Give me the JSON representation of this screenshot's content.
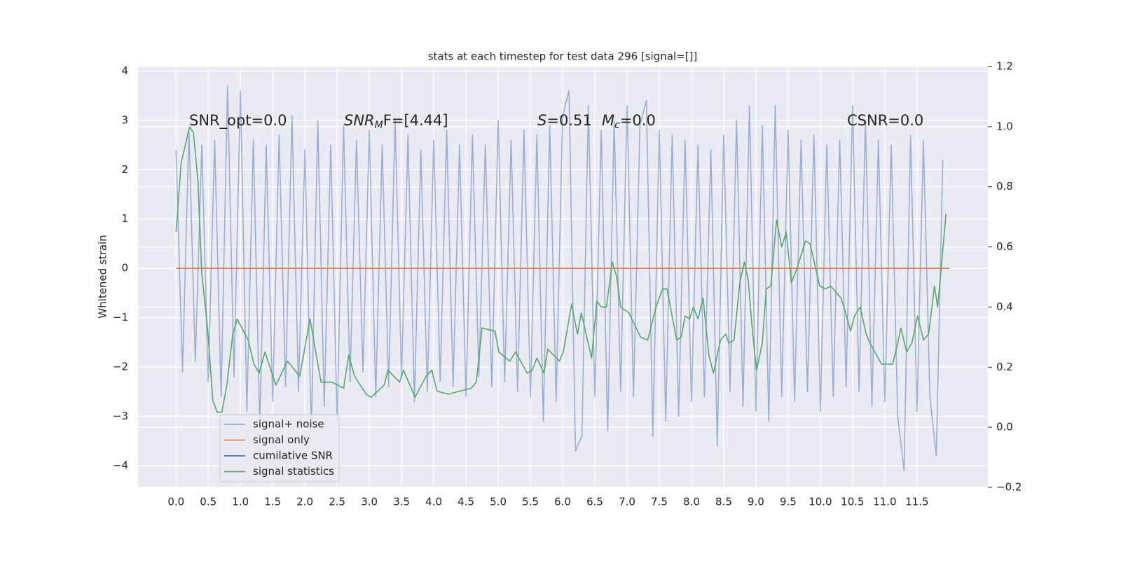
{
  "chart_data": {
    "type": "line",
    "title": "stats at each timestep for test data 296 [signal=[]]",
    "ylabel": "Whitened strain",
    "annotations": [
      {
        "text": "SNR_opt=0.0"
      },
      {
        "base": "SNR",
        "sub": "M",
        "rest": "F=[4.44]"
      },
      {
        "base": "S",
        "rest": "=0.51"
      },
      {
        "base": "M",
        "sub": "c",
        "rest": "=0.0"
      },
      {
        "text": "CSNR=0.0"
      }
    ],
    "xlim": [
      -0.59,
      12.6
    ],
    "ylim": [
      -4.44,
      4.09
    ],
    "y2lim": [
      -0.2,
      1.2
    ],
    "xticks": [
      {
        "value": 0,
        "label": "0.0"
      },
      0.5,
      {
        "value": 1,
        "label": "1.0"
      },
      1.5,
      {
        "value": 2,
        "label": "2.0"
      },
      2.5,
      {
        "value": 3,
        "label": "3.0"
      },
      3.5,
      {
        "value": 4,
        "label": "4.0"
      },
      4.5,
      {
        "value": 5,
        "label": "5.0"
      },
      5.5,
      {
        "value": 6,
        "label": "6.0"
      },
      6.5,
      {
        "value": 7,
        "label": "7.0"
      },
      7.5,
      {
        "value": 8,
        "label": "8.0"
      },
      8.5,
      {
        "value": 9,
        "label": "9.0"
      },
      9.5,
      {
        "value": 10,
        "label": "10.0"
      },
      10.5,
      {
        "value": 11,
        "label": "11.0"
      },
      11.5
    ],
    "yticks": [
      {
        "value": -4,
        "label": "−4"
      },
      {
        "value": -3,
        "label": "−3"
      },
      {
        "value": -2,
        "label": "−2"
      },
      {
        "value": -1,
        "label": "−1"
      },
      0,
      1,
      2,
      3,
      4
    ],
    "y2ticks": [
      {
        "value": -0.2,
        "label": "−0.2"
      },
      {
        "value": 0,
        "label": "0.0"
      },
      0.2,
      0.4,
      0.6,
      0.8,
      {
        "value": 1,
        "label": "1.0"
      },
      1.2
    ],
    "grid": true,
    "legend_loc": "lower left",
    "series": [
      {
        "name": "signal+ noise",
        "color": "#4c72b0",
        "alpha": 0.5,
        "x": [
          0.0,
          0.1,
          0.2,
          0.3,
          0.4,
          0.5,
          0.6,
          0.7,
          0.8,
          0.9,
          1.0,
          1.1,
          1.2,
          1.3,
          1.4,
          1.5,
          1.6,
          1.7,
          1.8,
          1.9,
          2.0,
          2.1,
          2.2,
          2.3,
          2.4,
          2.5,
          2.6,
          2.7,
          2.8,
          2.9,
          3.0,
          3.1,
          3.2,
          3.3,
          3.4,
          3.5,
          3.6,
          3.7,
          3.8,
          3.9,
          4.0,
          4.1,
          4.2,
          4.3,
          4.4,
          4.5,
          4.6,
          4.7,
          4.8,
          4.9,
          5.0,
          5.1,
          5.2,
          5.3,
          5.4,
          5.5,
          5.6,
          5.7,
          5.8,
          5.9,
          6.0,
          6.1,
          6.2,
          6.3,
          6.4,
          6.5,
          6.6,
          6.7,
          6.8,
          6.9,
          7.0,
          7.1,
          7.2,
          7.3,
          7.4,
          7.5,
          7.6,
          7.7,
          7.8,
          7.9,
          8.0,
          8.1,
          8.2,
          8.3,
          8.4,
          8.5,
          8.6,
          8.7,
          8.8,
          8.9,
          9.0,
          9.1,
          9.2,
          9.3,
          9.4,
          9.5,
          9.6,
          9.7,
          9.8,
          9.9,
          10.0,
          10.1,
          10.2,
          10.3,
          10.4,
          10.5,
          10.6,
          10.7,
          10.8,
          10.9,
          11.0,
          11.1,
          11.2,
          11.3,
          11.4,
          11.5,
          11.6,
          11.7,
          11.8,
          11.9
        ],
        "values": [
          2.4,
          -2.1,
          2.8,
          -1.9,
          2.5,
          -2.3,
          2.6,
          -2.6,
          3.7,
          -2.2,
          3.6,
          -2.9,
          2.6,
          -3.2,
          2.5,
          -2.7,
          2.7,
          -2.4,
          3.1,
          -2.5,
          2.4,
          -3.3,
          3.0,
          -2.8,
          2.5,
          -3.1,
          2.9,
          -2.3,
          2.6,
          -2.1,
          2.8,
          -2.6,
          2.5,
          -2.4,
          3.0,
          -2.2,
          2.7,
          -2.7,
          2.4,
          -2.5,
          2.6,
          -2.3,
          2.8,
          -2.4,
          2.5,
          -2.6,
          2.7,
          -2.2,
          2.5,
          -2.4,
          3.0,
          -2.3,
          2.6,
          -2.5,
          2.8,
          -2.6,
          2.7,
          -3.1,
          2.9,
          -2.7,
          3.1,
          3.6,
          -3.7,
          -3.4,
          3.3,
          -2.6,
          2.8,
          -3.3,
          3.0,
          -2.5,
          3.3,
          -2.6,
          2.9,
          3.4,
          -3.4,
          2.8,
          -3.1,
          2.7,
          -3.0,
          2.6,
          -2.7,
          2.5,
          -2.6,
          2.4,
          -3.6,
          2.7,
          -2.5,
          3.0,
          -2.8,
          3.3,
          -2.9,
          2.9,
          -3.1,
          3.3,
          -2.6,
          2.8,
          -2.7,
          2.6,
          -2.5,
          2.7,
          -2.9,
          2.5,
          -2.6,
          2.6,
          -2.4,
          3.3,
          -2.5,
          3.0,
          -2.8,
          2.6,
          -2.7,
          2.5,
          -3.0,
          -4.1,
          2.7,
          -2.9,
          2.6,
          -2.6,
          -3.8,
          2.2
        ]
      },
      {
        "name": "signal only",
        "color": "#dd8452",
        "x": [
          0,
          12
        ],
        "values": [
          0,
          0
        ]
      },
      {
        "name": "cumilative SNR",
        "color": "#4c72b0",
        "x": [],
        "values": []
      },
      {
        "name": "signal statistics",
        "color": "#55a868",
        "axis": "y2",
        "x": [
          0.0,
          0.08,
          0.21,
          0.27,
          0.34,
          0.4,
          0.49,
          0.57,
          0.64,
          0.71,
          0.79,
          0.88,
          0.95,
          1.12,
          1.21,
          1.29,
          1.38,
          1.55,
          1.73,
          1.92,
          2.08,
          2.25,
          2.42,
          2.6,
          2.68,
          2.77,
          2.95,
          3.03,
          3.23,
          3.29,
          3.47,
          3.53,
          3.71,
          3.88,
          3.97,
          4.05,
          4.23,
          4.4,
          4.58,
          4.66,
          4.75,
          4.95,
          5.01,
          5.18,
          5.27,
          5.45,
          5.53,
          5.6,
          5.71,
          5.77,
          5.95,
          6.01,
          6.14,
          6.23,
          6.29,
          6.45,
          6.53,
          6.6,
          6.68,
          6.77,
          6.84,
          6.9,
          7.03,
          7.21,
          7.32,
          7.45,
          7.55,
          7.62,
          7.77,
          7.84,
          7.9,
          7.97,
          8.03,
          8.1,
          8.18,
          8.27,
          8.34,
          8.45,
          8.53,
          8.58,
          8.66,
          8.75,
          8.82,
          8.88,
          8.95,
          9.01,
          9.1,
          9.16,
          9.23,
          9.32,
          9.4,
          9.47,
          9.55,
          9.64,
          9.77,
          9.84,
          9.99,
          10.08,
          10.16,
          10.32,
          10.38,
          10.47,
          10.53,
          10.62,
          10.71,
          10.77,
          10.95,
          11.03,
          11.12,
          11.18,
          11.25,
          11.34,
          11.42,
          11.51,
          11.6,
          11.68,
          11.77,
          11.82,
          11.88,
          11.95
        ],
        "values": [
          0.65,
          0.88,
          1.0,
          0.98,
          0.82,
          0.51,
          0.33,
          0.09,
          0.05,
          0.05,
          0.14,
          0.31,
          0.36,
          0.29,
          0.21,
          0.18,
          0.25,
          0.14,
          0.22,
          0.17,
          0.36,
          0.15,
          0.15,
          0.13,
          0.24,
          0.17,
          0.11,
          0.1,
          0.14,
          0.19,
          0.15,
          0.19,
          0.1,
          0.17,
          0.19,
          0.12,
          0.11,
          0.12,
          0.13,
          0.15,
          0.33,
          0.32,
          0.25,
          0.22,
          0.25,
          0.18,
          0.19,
          0.23,
          0.18,
          0.26,
          0.22,
          0.25,
          0.41,
          0.31,
          0.38,
          0.23,
          0.42,
          0.4,
          0.4,
          0.55,
          0.5,
          0.4,
          0.38,
          0.3,
          0.29,
          0.4,
          0.46,
          0.46,
          0.29,
          0.3,
          0.37,
          0.36,
          0.4,
          0.36,
          0.43,
          0.24,
          0.18,
          0.29,
          0.31,
          0.28,
          0.29,
          0.48,
          0.55,
          0.49,
          0.31,
          0.19,
          0.28,
          0.46,
          0.47,
          0.69,
          0.6,
          0.65,
          0.48,
          0.53,
          0.62,
          0.61,
          0.47,
          0.46,
          0.47,
          0.43,
          0.39,
          0.32,
          0.37,
          0.4,
          0.31,
          0.28,
          0.21,
          0.21,
          0.21,
          0.26,
          0.33,
          0.25,
          0.28,
          0.37,
          0.29,
          0.31,
          0.47,
          0.4,
          0.54,
          0.71
        ]
      }
    ]
  }
}
